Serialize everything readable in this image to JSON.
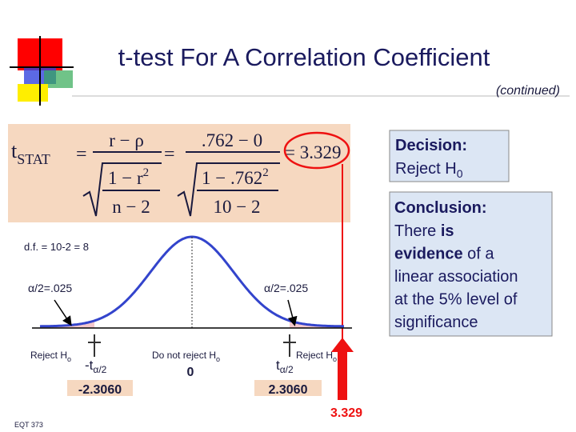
{
  "title": "t-test For A Correlation Coefficient",
  "subtitle": "(continued)",
  "formula": {
    "lhs": "t",
    "lhs_sub": "STAT",
    "eq1": "=",
    "num1": "r − ρ",
    "den1_top": "1 − r",
    "den1_sup": "2",
    "den1_bottom": "n − 2",
    "eq2": "=",
    "num2": ".762 − 0",
    "den2_top": "1 − .762",
    "den2_sup": "2",
    "den2_bottom": "10 − 2",
    "result": "= 3.329"
  },
  "df": "d.f. = 10-2 = 8",
  "alpha_left": "α/2=.025",
  "alpha_right": "α/2=.025",
  "regions": {
    "reject_left": {
      "text": "Reject H",
      "sub": "o"
    },
    "do_not_reject": {
      "text": "Do not reject H",
      "sub": "o"
    },
    "reject_right": {
      "text": "Reject H",
      "sub": "o"
    }
  },
  "critical_left": {
    "text": "-t",
    "sub": "α/2",
    "value": "-2.3060"
  },
  "center": "0",
  "critical_right": {
    "text": "t",
    "sub": "α/2",
    "value": "2.3060"
  },
  "test_stat": "3.329",
  "decision": {
    "heading": "Decision:",
    "text": "Reject H",
    "sub": "0"
  },
  "conclusion": {
    "heading": "Conclusion:",
    "lines": [
      [
        "There ",
        "is"
      ],
      [
        "evidence",
        " of a"
      ],
      [
        "linear association"
      ],
      [
        "at the 5% level of"
      ],
      [
        "significance"
      ]
    ]
  },
  "footer": "EQT 373"
}
